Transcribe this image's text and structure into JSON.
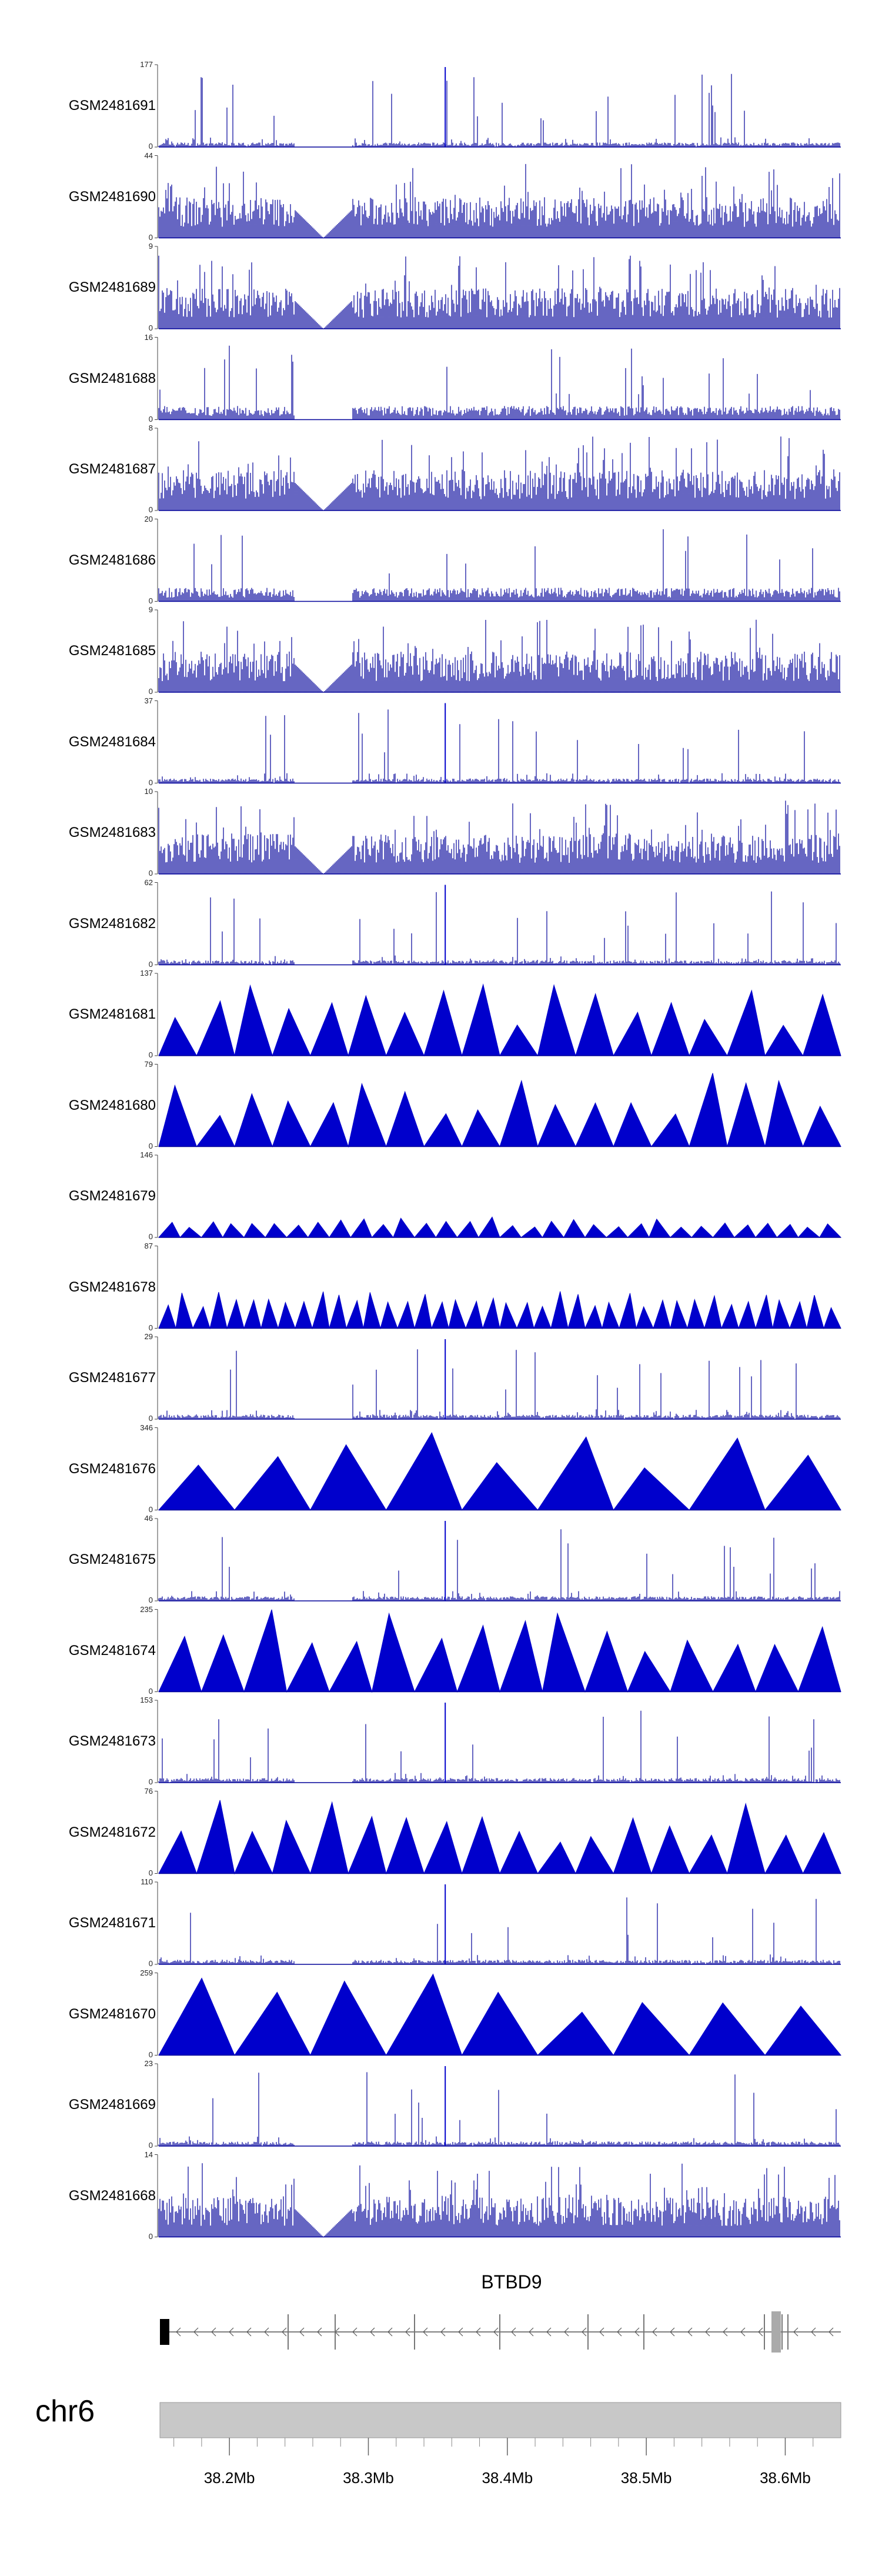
{
  "tracks": [
    {
      "label": "GSM2481691",
      "ymin": "0",
      "ymax": "177",
      "style": "dense-sparse"
    },
    {
      "label": "GSM2481690",
      "ymin": "0",
      "ymax": "44",
      "style": "dense"
    },
    {
      "label": "GSM2481689",
      "ymin": "0",
      "ymax": "9",
      "style": "dense"
    },
    {
      "label": "GSM2481688",
      "ymin": "0",
      "ymax": "16",
      "style": "dense-low"
    },
    {
      "label": "GSM2481687",
      "ymin": "0",
      "ymax": "8",
      "style": "dense"
    },
    {
      "label": "GSM2481686",
      "ymin": "0",
      "ymax": "20",
      "style": "dense-low"
    },
    {
      "label": "GSM2481685",
      "ymin": "0",
      "ymax": "9",
      "style": "dense"
    },
    {
      "label": "GSM2481684",
      "ymin": "0",
      "ymax": "37",
      "style": "dense-sparse"
    },
    {
      "label": "GSM2481683",
      "ymin": "0",
      "ymax": "10",
      "style": "dense"
    },
    {
      "label": "GSM2481682",
      "ymin": "0",
      "ymax": "62",
      "style": "dense-sparse"
    },
    {
      "label": "GSM2481681",
      "ymin": "0",
      "ymax": "137",
      "style": "triangles"
    },
    {
      "label": "GSM2481680",
      "ymin": "0",
      "ymax": "79",
      "style": "triangles"
    },
    {
      "label": "GSM2481679",
      "ymin": "0",
      "ymax": "146",
      "style": "triangles-small"
    },
    {
      "label": "GSM2481678",
      "ymin": "0",
      "ymax": "87",
      "style": "triangles-dense"
    },
    {
      "label": "GSM2481677",
      "ymin": "0",
      "ymax": "29",
      "style": "dense-sparse"
    },
    {
      "label": "GSM2481676",
      "ymin": "0",
      "ymax": "346",
      "style": "triangles-big"
    },
    {
      "label": "GSM2481675",
      "ymin": "0",
      "ymax": "46",
      "style": "dense-sparse"
    },
    {
      "label": "GSM2481674",
      "ymin": "0",
      "ymax": "235",
      "style": "triangles-tall"
    },
    {
      "label": "GSM2481673",
      "ymin": "0",
      "ymax": "153",
      "style": "dense-sparse"
    },
    {
      "label": "GSM2481672",
      "ymin": "0",
      "ymax": "76",
      "style": "triangles"
    },
    {
      "label": "GSM2481671",
      "ymin": "0",
      "ymax": "110",
      "style": "dense-sparse"
    },
    {
      "label": "GSM2481670",
      "ymin": "0",
      "ymax": "259",
      "style": "triangles-big"
    },
    {
      "label": "GSM2481669",
      "ymin": "0",
      "ymax": "23",
      "style": "dense-sparse"
    },
    {
      "label": "GSM2481668",
      "ymin": "0",
      "ymax": "14",
      "style": "dense"
    }
  ],
  "gene": {
    "name": "BTBD9",
    "strand": "minus"
  },
  "chromosome": "chr6",
  "colors": {
    "signal": "#0000cc",
    "signal_dark": "#000099",
    "ideogram": "#c8c8c8",
    "gene_exon": "#000000",
    "gene_line": "#555555"
  },
  "chart_data": {
    "type": "area",
    "title": "",
    "xlabel": "",
    "ylabel": "",
    "x_unit": "Mb",
    "xlim": [
      38.15,
      38.64
    ],
    "x_ticks": [
      38.2,
      38.3,
      38.4,
      38.5,
      38.6
    ],
    "x_tick_labels": [
      "38.2Mb",
      "38.3Mb",
      "38.4Mb",
      "38.5Mb",
      "38.6Mb"
    ],
    "series": [
      {
        "name": "GSM2481691",
        "ylim": [
          0,
          177
        ]
      },
      {
        "name": "GSM2481690",
        "ylim": [
          0,
          44
        ]
      },
      {
        "name": "GSM2481689",
        "ylim": [
          0,
          9
        ]
      },
      {
        "name": "GSM2481688",
        "ylim": [
          0,
          16
        ]
      },
      {
        "name": "GSM2481687",
        "ylim": [
          0,
          8
        ]
      },
      {
        "name": "GSM2481686",
        "ylim": [
          0,
          20
        ]
      },
      {
        "name": "GSM2481685",
        "ylim": [
          0,
          9
        ]
      },
      {
        "name": "GSM2481684",
        "ylim": [
          0,
          37
        ]
      },
      {
        "name": "GSM2481683",
        "ylim": [
          0,
          10
        ]
      },
      {
        "name": "GSM2481682",
        "ylim": [
          0,
          62
        ]
      },
      {
        "name": "GSM2481681",
        "ylim": [
          0,
          137
        ]
      },
      {
        "name": "GSM2481680",
        "ylim": [
          0,
          79
        ]
      },
      {
        "name": "GSM2481679",
        "ylim": [
          0,
          146
        ]
      },
      {
        "name": "GSM2481678",
        "ylim": [
          0,
          87
        ]
      },
      {
        "name": "GSM2481677",
        "ylim": [
          0,
          29
        ]
      },
      {
        "name": "GSM2481676",
        "ylim": [
          0,
          346
        ]
      },
      {
        "name": "GSM2481675",
        "ylim": [
          0,
          46
        ]
      },
      {
        "name": "GSM2481674",
        "ylim": [
          0,
          235
        ]
      },
      {
        "name": "GSM2481673",
        "ylim": [
          0,
          153
        ]
      },
      {
        "name": "GSM2481672",
        "ylim": [
          0,
          76
        ]
      },
      {
        "name": "GSM2481671",
        "ylim": [
          0,
          110
        ]
      },
      {
        "name": "GSM2481670",
        "ylim": [
          0,
          259
        ]
      },
      {
        "name": "GSM2481669",
        "ylim": [
          0,
          23
        ]
      },
      {
        "name": "GSM2481668",
        "ylim": [
          0,
          14
        ]
      }
    ]
  }
}
